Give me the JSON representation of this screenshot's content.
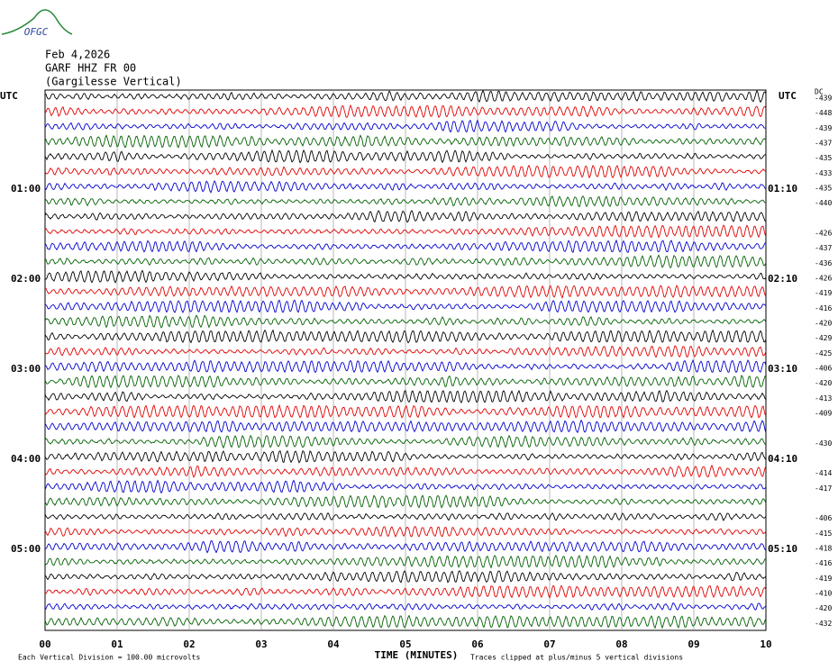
{
  "header": {
    "logo": "OFGC",
    "date": "Feb 4,2026",
    "station": "GARF HHZ FR 00",
    "location": "(Gargilesse Vertical)"
  },
  "left_label": "UTC",
  "right_label": "UTC",
  "dc_label": "DC",
  "left_times": [
    "01:00",
    "02:00",
    "03:00",
    "04:00",
    "05:00"
  ],
  "right_times": [
    "01:10",
    "02:10",
    "03:10",
    "04:10",
    "05:10"
  ],
  "dc_offsets": [
    "-439",
    "-448",
    "-439",
    "-437",
    "-435",
    "-433",
    "-435",
    "-440",
    null,
    "-426",
    "-437",
    "-436",
    "-426",
    "-419",
    "-416",
    "-420",
    "-429",
    "-425",
    "-406",
    "-420",
    "-413",
    "-409",
    null,
    "-430",
    null,
    "-414",
    "-417",
    null,
    "-406",
    "-415",
    "-418",
    "-416",
    "-419",
    "-410",
    "-420",
    "-432"
  ],
  "x_ticks": [
    "00",
    "01",
    "02",
    "03",
    "04",
    "05",
    "06",
    "07",
    "08",
    "09",
    "10"
  ],
  "x_label": "TIME (MINUTES)",
  "footer_left": "Each Vertical Division =  100.00 microvolts",
  "footer_right": "Traces clipped at plus/minus 5 vertical divisions"
}
